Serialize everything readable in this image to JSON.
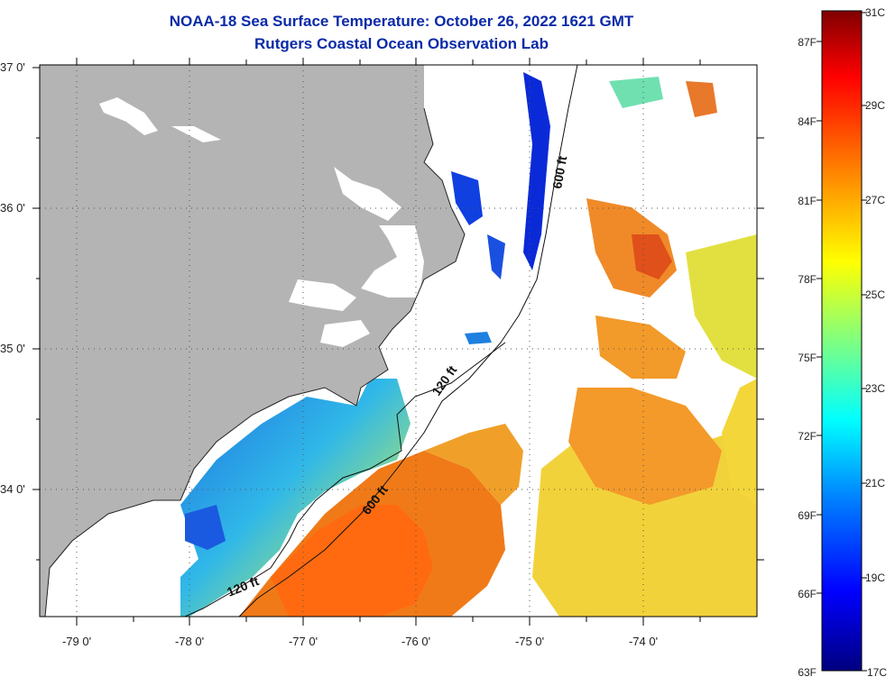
{
  "header": {
    "title": "NOAA-18 Sea Surface Temperature:  October 26, 2022 1621 GMT",
    "subtitle": "Rutgers Coastal Ocean Observation Lab"
  },
  "map": {
    "lat_labels": [
      "37 0'",
      "36 0'",
      "35 0'",
      "34 0'"
    ],
    "lon_labels": [
      "-79 0'",
      "-78 0'",
      "-77 0'",
      "-76 0'",
      "-75 0'",
      "-74 0'"
    ],
    "contours": [
      {
        "label": "600 ft",
        "position": "upper"
      },
      {
        "label": "120 ft",
        "position": "middle"
      },
      {
        "label": "600 ft",
        "position": "lower"
      },
      {
        "label": "120 ft",
        "position": "lower-left"
      }
    ],
    "colors": {
      "land": "#b4b4b4",
      "cloud": "#ffffff"
    }
  },
  "colorbar": {
    "fahrenheit_labels": [
      "87F",
      "84F",
      "81F",
      "78F",
      "75F",
      "72F",
      "69F",
      "66F",
      "63F"
    ],
    "celsius_labels": [
      "31C",
      "29C",
      "27C",
      "25C",
      "23C",
      "21C",
      "19C",
      "17C"
    ],
    "scale": [
      "#000080",
      "#0000ff",
      "#0080ff",
      "#00ffff",
      "#80ff80",
      "#ffff00",
      "#ff8000",
      "#ff0000",
      "#800000"
    ]
  }
}
